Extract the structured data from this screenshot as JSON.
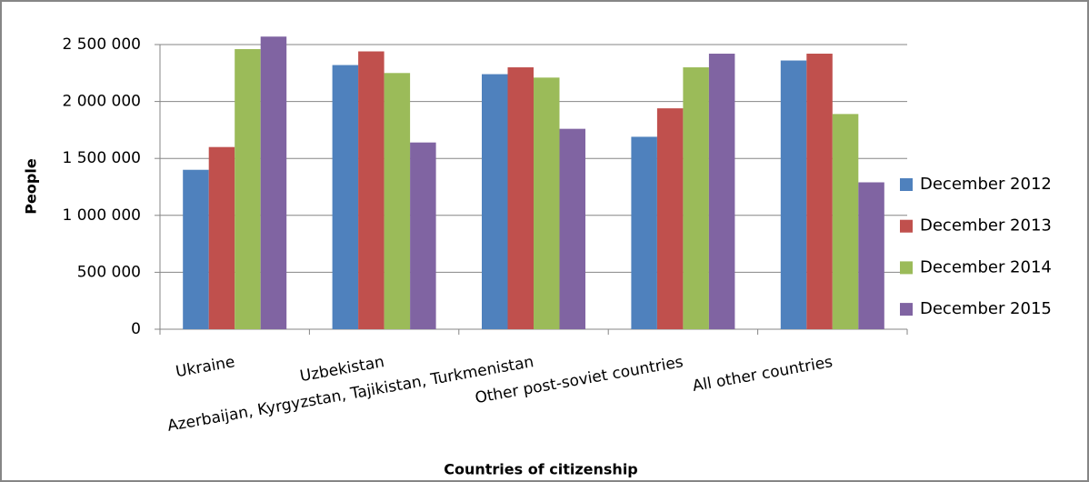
{
  "chart_data": {
    "type": "bar",
    "x_label": "Countries of citizenship",
    "y_label": "People",
    "categories": [
      "Ukraine",
      "Uzbekistan",
      "Azerbaijan, Kyrgyzstan, Tajikistan, Turkmenistan",
      "Other post-soviet countries",
      "All other countries"
    ],
    "series": [
      {
        "name": "December 2012",
        "color": "#4f81bd",
        "values": [
          1400000,
          2320000,
          2240000,
          1690000,
          2360000
        ]
      },
      {
        "name": "December 2013",
        "color": "#c0504d",
        "values": [
          1600000,
          2440000,
          2300000,
          1940000,
          2420000
        ]
      },
      {
        "name": "December 2014",
        "color": "#9bbb59",
        "values": [
          2460000,
          2250000,
          2210000,
          2300000,
          1890000
        ]
      },
      {
        "name": "December 2015",
        "color": "#8064a2",
        "values": [
          2570000,
          1640000,
          1760000,
          2420000,
          1290000
        ]
      }
    ],
    "ylim": [
      0,
      2500000
    ],
    "yticks": [
      0,
      {
        "value": 500000,
        "label": "500 000"
      },
      {
        "value": 1000000,
        "label": "1 000 000"
      },
      {
        "value": 1500000,
        "label": "1 500 000"
      },
      {
        "value": 2000000,
        "label": "2 000 000"
      },
      {
        "value": 2500000,
        "label": "2 500 000"
      }
    ],
    "grid": true,
    "legend": "right"
  }
}
